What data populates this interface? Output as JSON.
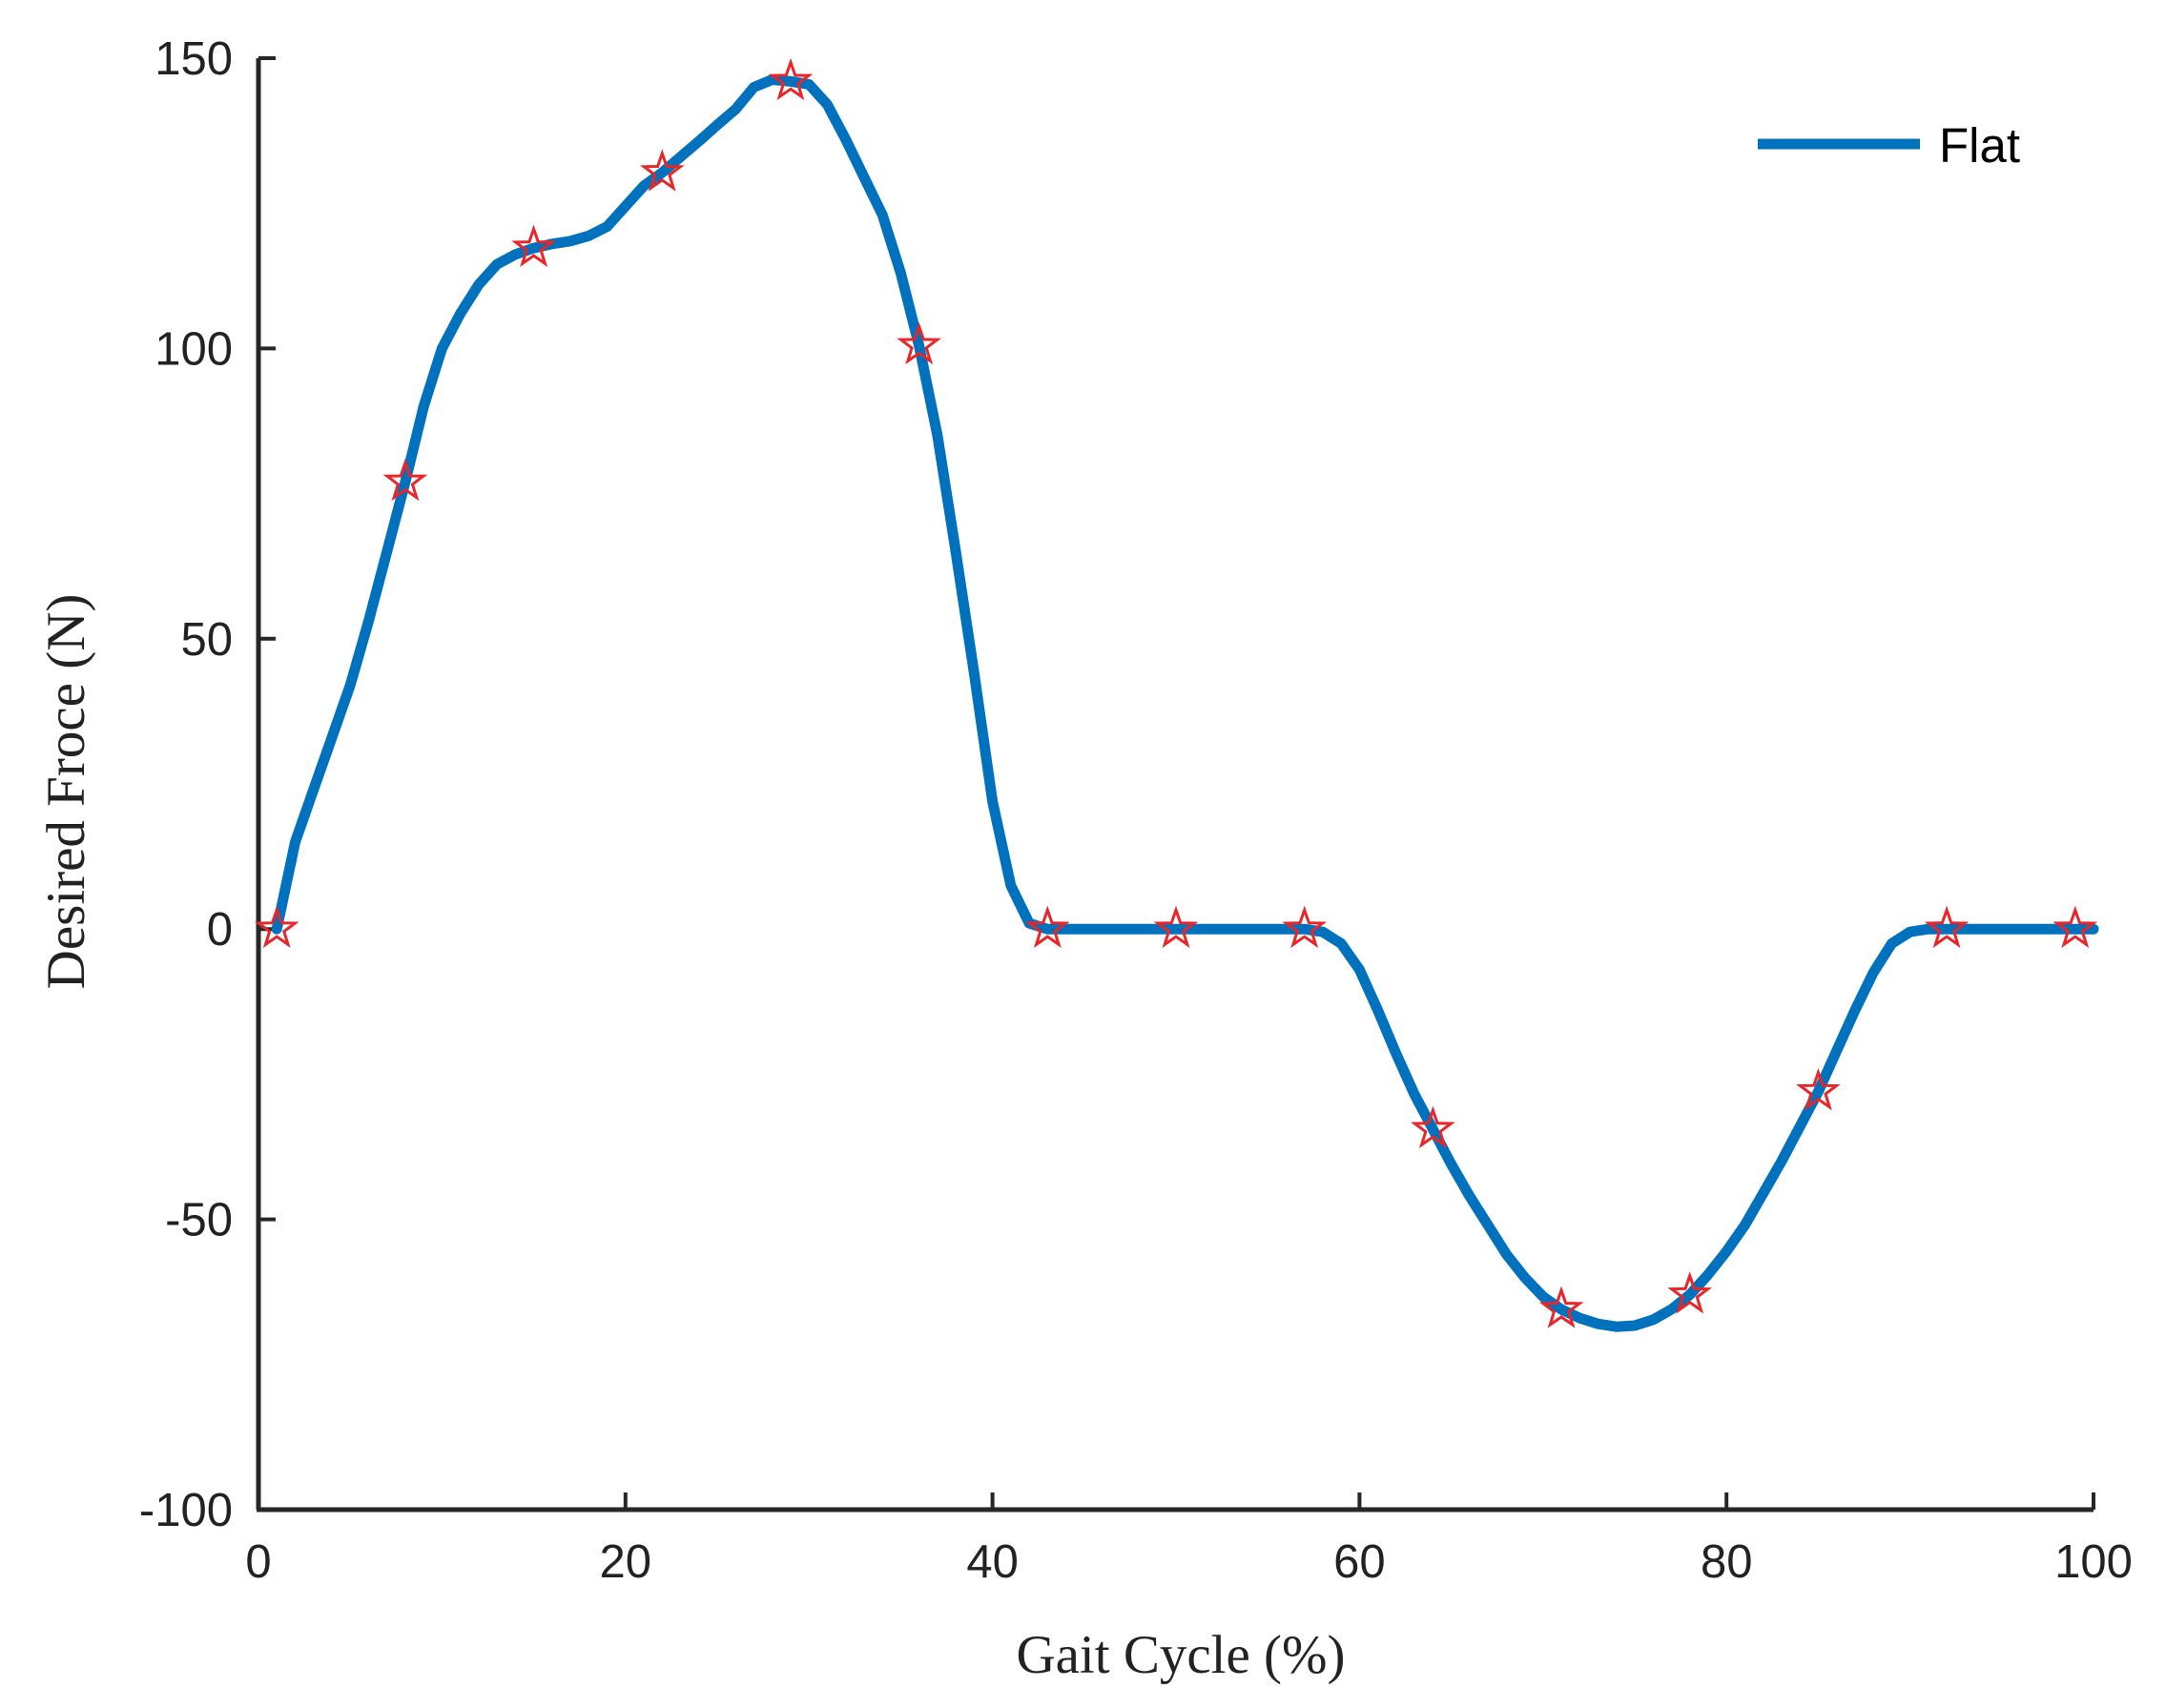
{
  "chart_data": {
    "type": "line",
    "title": "",
    "xlabel": "Gait Cycle (%)",
    "ylabel": "Desired Froce (N)",
    "xlim": [
      0,
      100
    ],
    "ylim": [
      -100,
      150
    ],
    "xticks": [
      0,
      20,
      40,
      60,
      80,
      100
    ],
    "yticks": [
      150,
      100,
      50,
      0,
      -50,
      -100
    ],
    "xtick_labels": [
      "0",
      "20",
      "40",
      "60",
      "80",
      "100"
    ],
    "ytick_labels": [
      "150",
      "100",
      "50",
      "0",
      "-50",
      "-100"
    ],
    "grid": false,
    "legend_position": "top-right",
    "series": [
      {
        "name": "Flat",
        "color": "#0072BD",
        "x": [
          1,
          2,
          3,
          4,
          5,
          6,
          7,
          8,
          9,
          10,
          11,
          12,
          13,
          14,
          15,
          16,
          17,
          18,
          19,
          20,
          21,
          22,
          23,
          24,
          25,
          26,
          27,
          28,
          29,
          30,
          31,
          32,
          33,
          34,
          35,
          36,
          37,
          38,
          39,
          40,
          41,
          42,
          43,
          44,
          45,
          46,
          47,
          48,
          49,
          50,
          51,
          52,
          53,
          54,
          55,
          56,
          57,
          58,
          59,
          60,
          61,
          62,
          63,
          64,
          65,
          66,
          67,
          68,
          69,
          70,
          71,
          72,
          73,
          74,
          75,
          76,
          77,
          78,
          79,
          80,
          81,
          82,
          83,
          84,
          85,
          86,
          87,
          88,
          89,
          90,
          91,
          92,
          93,
          94,
          95,
          96,
          97,
          98,
          99,
          100
        ],
        "y": [
          0,
          15,
          24,
          33,
          42,
          53,
          65,
          77,
          90,
          100,
          106,
          111,
          114.5,
          116.2,
          117.3,
          118,
          118.5,
          119.4,
          121,
          124.5,
          128,
          130.3,
          133,
          135.7,
          138.5,
          141.2,
          145,
          146.3,
          146,
          145.5,
          142,
          136,
          129.5,
          123,
          113,
          100.5,
          85,
          65,
          44,
          22,
          7.5,
          1,
          0,
          0,
          0,
          0,
          0,
          0,
          0,
          0,
          0,
          0,
          0,
          0,
          0,
          0,
          0,
          -0.5,
          -2.5,
          -7,
          -14,
          -21.5,
          -28.5,
          -34.5,
          -40.5,
          -46,
          -51,
          -56,
          -60,
          -63.3,
          -65.5,
          -67,
          -68,
          -68.5,
          -68.3,
          -67.3,
          -65.5,
          -63,
          -59.5,
          -55.5,
          -51,
          -45.5,
          -40,
          -34,
          -28,
          -21,
          -14,
          -7.5,
          -2.5,
          -0.5,
          0,
          0,
          0,
          0,
          0,
          0,
          0,
          0,
          0,
          0
        ]
      }
    ],
    "markers": {
      "shape": "star",
      "color": "#E8262A",
      "x": [
        1,
        8,
        15,
        22,
        29,
        36,
        43,
        50,
        57,
        64,
        71,
        78,
        85,
        92,
        99
      ],
      "y": [
        0,
        77,
        117.3,
        130.3,
        146,
        100.5,
        0,
        0,
        0,
        -34.5,
        -65.5,
        -63,
        -28,
        0,
        0
      ]
    }
  }
}
